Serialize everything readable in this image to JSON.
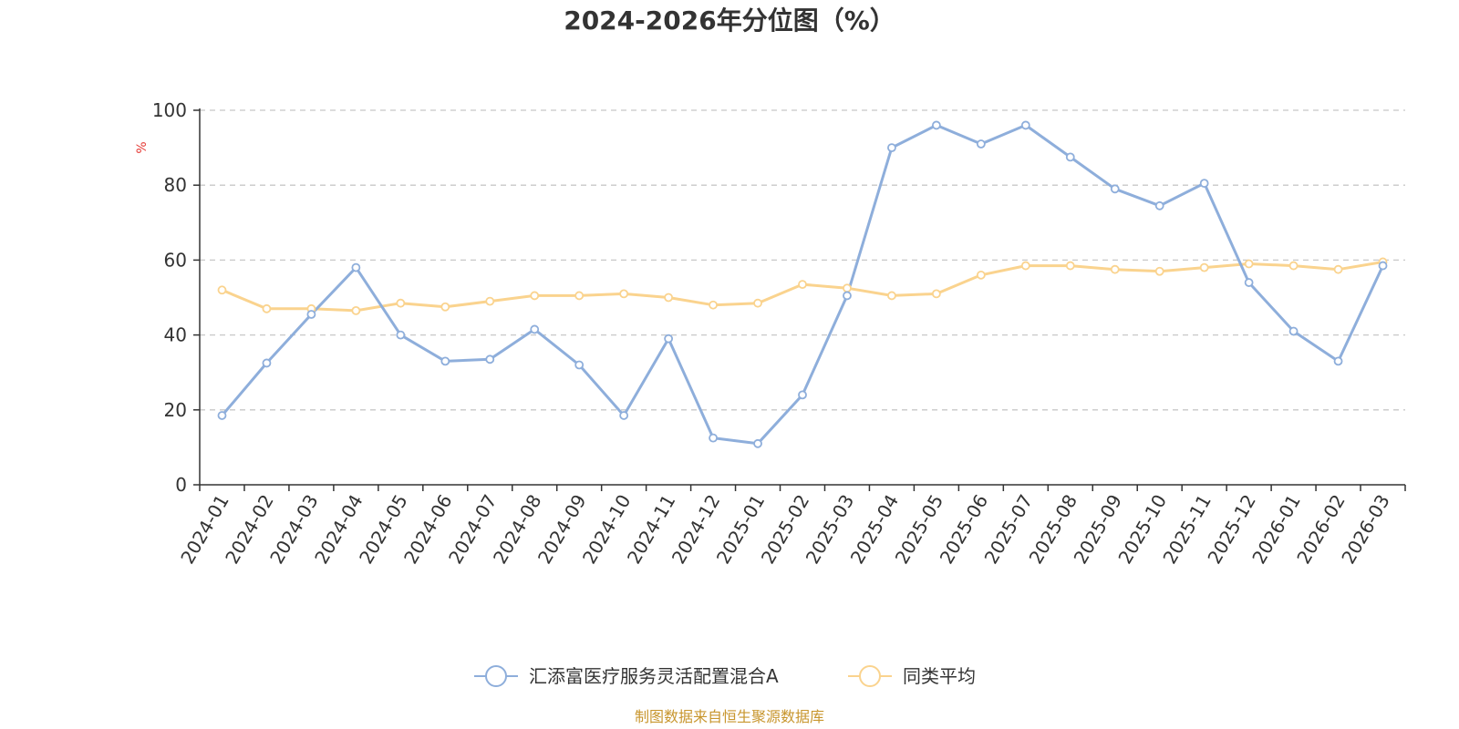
{
  "chart_data": {
    "type": "line",
    "title": "2024-2026年分位图（%）",
    "ylabel": "%",
    "xlabel": "",
    "ylim": [
      0,
      100
    ],
    "yticks": [
      "0",
      "20",
      "40",
      "60",
      "80",
      "100"
    ],
    "grid": true,
    "legend_position": "bottom-center",
    "categories": [
      "2024-01",
      "2024-02",
      "2024-03",
      "2024-04",
      "2024-05",
      "2024-06",
      "2024-07",
      "2024-08",
      "2024-09",
      "2024-10",
      "2024-11",
      "2024-12",
      "2025-01",
      "2025-02",
      "2025-03",
      "2025-04",
      "2025-05",
      "2025-06",
      "2025-07",
      "2025-08",
      "2025-09",
      "2025-10",
      "2025-11",
      "2025-12",
      "2026-01",
      "2026-02",
      "2026-03"
    ],
    "series": [
      {
        "name": "汇添富医疗服务灵活配置混合A",
        "color": "#8eaedb",
        "values": [
          18.5,
          32.5,
          45.5,
          58,
          40,
          33,
          33.5,
          41.5,
          32,
          18.5,
          39,
          12.5,
          11,
          24,
          50.5,
          90,
          96,
          91,
          96,
          87.5,
          79,
          74.5,
          80.5,
          54,
          41,
          33,
          58.5
        ]
      },
      {
        "name": "同类平均",
        "color": "#fad38e",
        "values": [
          52,
          47,
          47,
          46.5,
          48.5,
          47.5,
          49,
          50.5,
          50.5,
          51,
          50,
          48,
          48.5,
          53.5,
          52.5,
          50.5,
          51,
          56,
          58.5,
          58.5,
          57.5,
          57,
          58,
          59,
          58.5,
          57.5,
          59.5
        ]
      }
    ],
    "source": "制图数据来自恒生聚源数据库"
  }
}
